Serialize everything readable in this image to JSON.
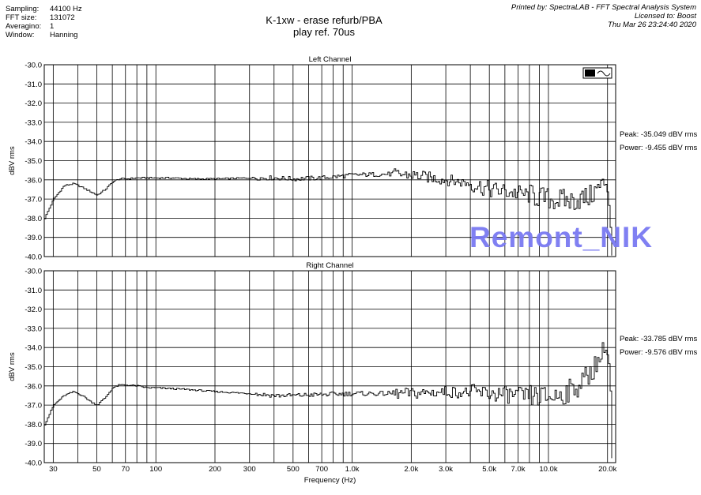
{
  "header": {
    "rows": [
      {
        "key": "Sampling:",
        "value": "44100 Hz"
      },
      {
        "key": "FFT size:",
        "value": "131072"
      },
      {
        "key": "Averagino:",
        "value": "1"
      },
      {
        "key": "Window:",
        "value": "Hanning"
      }
    ],
    "title_line1": "K-1xw - erase refurb/PBA",
    "title_line2": "play ref. 70us",
    "printed_line1": "Printed by: SpectraLAB - FFT Spectral Analysis System",
    "printed_line2": "Licensed to: Boost",
    "printed_line3": "Thu Mar 26 23:24:40 2020"
  },
  "watermark": "Remont_NIK",
  "left_stats": {
    "peak": "Peak: -35.049 dBV rms",
    "power": "Power: -9.455 dBV rms"
  },
  "right_stats": {
    "peak": "Peak: -33.785 dBV rms",
    "power": "Power: -9.576 dBV rms"
  },
  "chart_data": [
    {
      "type": "line",
      "title": "Left Channel",
      "ylabel": "dBV rms",
      "xscale": "log",
      "xlim": [
        27,
        22000
      ],
      "ylim": [
        -40,
        -30
      ],
      "yticks": [
        "-30.0",
        "-31.0",
        "-32.0",
        "-33.0",
        "-34.0",
        "-35.0",
        "-36.0",
        "-37.0",
        "-38.0",
        "-39.0",
        "-40.0"
      ],
      "grid": true,
      "series": [
        {
          "x": [
            27,
            30,
            34,
            38,
            42,
            46,
            50,
            55,
            60,
            65,
            70,
            80,
            90,
            100,
            120,
            150,
            200,
            300,
            400,
            500,
            700,
            1000,
            1500,
            2000,
            3000,
            4000,
            5000,
            7000,
            10000,
            13000,
            16000,
            18000,
            19500,
            20000,
            20500,
            21000
          ],
          "y": [
            -38.0,
            -37.0,
            -36.3,
            -36.2,
            -36.4,
            -36.6,
            -36.8,
            -36.5,
            -36.1,
            -35.95,
            -35.95,
            -35.9,
            -35.9,
            -35.9,
            -35.9,
            -35.95,
            -35.95,
            -35.9,
            -35.9,
            -35.95,
            -35.9,
            -35.75,
            -35.7,
            -35.75,
            -36.0,
            -36.2,
            -36.5,
            -36.7,
            -37.0,
            -37.1,
            -36.9,
            -36.4,
            -36.2,
            -36.7,
            -38.0,
            -39.9
          ]
        }
      ]
    },
    {
      "type": "line",
      "title": "Right Channel",
      "ylabel": "dBV rms",
      "xlabel": "Frequency (Hz)",
      "xscale": "log",
      "xlim": [
        27,
        22000
      ],
      "ylim": [
        -40,
        -30
      ],
      "yticks": [
        "-30.0",
        "-31.0",
        "-32.0",
        "-33.0",
        "-34.0",
        "-35.0",
        "-36.0",
        "-37.0",
        "-38.0",
        "-39.0",
        "-40.0"
      ],
      "xticks": [
        {
          "v": 30,
          "label": "30"
        },
        {
          "v": 50,
          "label": "50"
        },
        {
          "v": 70,
          "label": "70"
        },
        {
          "v": 100,
          "label": "100"
        },
        {
          "v": 200,
          "label": "200"
        },
        {
          "v": 300,
          "label": "300"
        },
        {
          "v": 500,
          "label": "500"
        },
        {
          "v": 700,
          "label": "700"
        },
        {
          "v": 1000,
          "label": "1.0k"
        },
        {
          "v": 2000,
          "label": "2.0k"
        },
        {
          "v": 3000,
          "label": "3.0k"
        },
        {
          "v": 5000,
          "label": "5.0k"
        },
        {
          "v": 7000,
          "label": "7.0k"
        },
        {
          "v": 10000,
          "label": "10.0k"
        },
        {
          "v": 20000,
          "label": "20.0k"
        }
      ],
      "grid": true,
      "series": [
        {
          "x": [
            27,
            30,
            34,
            38,
            42,
            46,
            50,
            55,
            60,
            65,
            70,
            80,
            90,
            100,
            150,
            200,
            300,
            400,
            500,
            700,
            1000,
            1500,
            2000,
            3000,
            5000,
            7000,
            10000,
            12000,
            14000,
            16000,
            18000,
            19000,
            19500,
            20000,
            20500,
            21000
          ],
          "y": [
            -38.0,
            -37.0,
            -36.5,
            -36.3,
            -36.5,
            -36.8,
            -37.0,
            -36.6,
            -36.1,
            -35.95,
            -35.95,
            -36.0,
            -36.1,
            -36.1,
            -36.2,
            -36.3,
            -36.4,
            -36.5,
            -36.5,
            -36.45,
            -36.4,
            -36.4,
            -36.4,
            -36.3,
            -36.4,
            -36.5,
            -36.6,
            -36.4,
            -36.0,
            -35.4,
            -34.6,
            -34.2,
            -34.1,
            -34.5,
            -35.2,
            -39.8
          ]
        }
      ]
    }
  ]
}
